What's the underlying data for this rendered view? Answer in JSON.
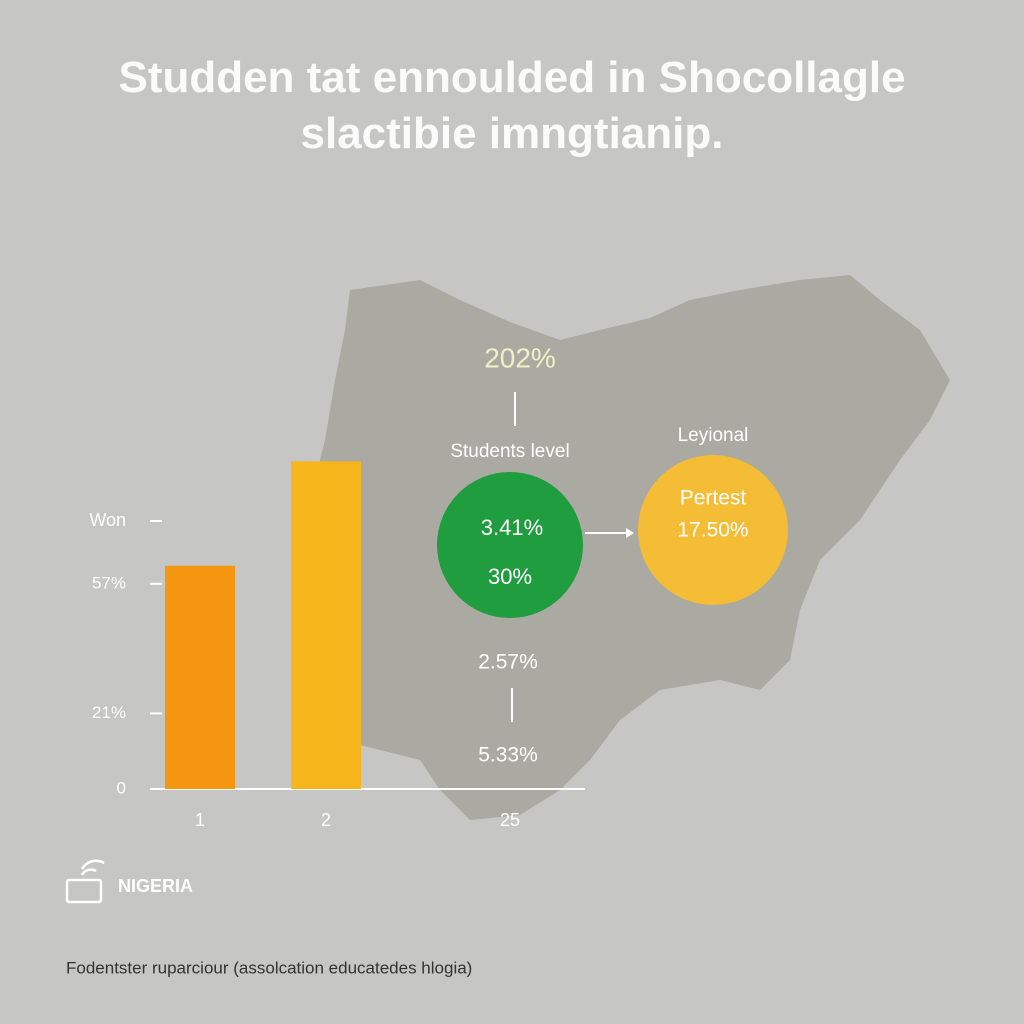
{
  "chart_data": {
    "type": "bar",
    "title": "Studden tat ennoulded in Shocollagle slactibie imngtianip.",
    "y_label": "Won",
    "categories": [
      "1",
      "2",
      "25"
    ],
    "values": [
      62,
      91,
      null
    ],
    "colors": [
      "#f4960f",
      "#f6b51a"
    ],
    "ylim": [
      0,
      100
    ],
    "yticks": [
      0,
      {
        "value": 21,
        "label": "21%"
      },
      {
        "value": 57,
        "label": "57%"
      }
    ],
    "grid": false
  },
  "diagram": {
    "top_value": "202%",
    "node_a": {
      "label": "Students level",
      "values": [
        "3.41%",
        "30%"
      ],
      "color": "#1f9d3f"
    },
    "node_b": {
      "label": "Leyional",
      "values": [
        "Pertest",
        "17.50%"
      ],
      "color": "#f5bc36"
    },
    "lower_values": [
      "2.57%",
      "5.33%"
    ]
  },
  "brand": "NIGERIA",
  "footer": "Fodentster ruparciour (assolcation educatedes hlogia)"
}
